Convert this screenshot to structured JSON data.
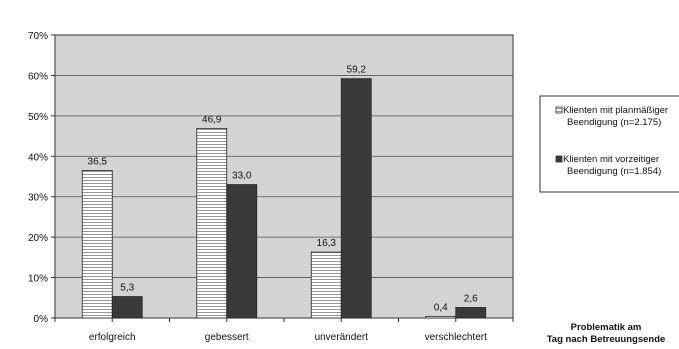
{
  "chart_data": {
    "type": "bar",
    "categories": [
      "erfolgreich",
      "gebessert",
      "unverändert",
      "verschlechtert"
    ],
    "series": [
      {
        "name_lines": [
          "Klienten mit planmäßiger",
          "Beendigung (n=2.175)"
        ],
        "values": [
          36.5,
          46.9,
          16.3,
          0.4
        ],
        "labels": [
          "36,5",
          "46,9",
          "16,3",
          "0,4"
        ],
        "pattern": "horizontal-stripes",
        "color": "#ffffff"
      },
      {
        "name_lines": [
          "Klienten mit vorzeitiger",
          "Beendigung (n=1.854)"
        ],
        "values": [
          5.3,
          33.0,
          59.2,
          2.6
        ],
        "labels": [
          "5,3",
          "33,0",
          "59,2",
          "2,6"
        ],
        "pattern": "solid",
        "color": "#3a3a3a"
      }
    ],
    "ylim": [
      0,
      70
    ],
    "yticks": [
      "0%",
      "10%",
      "20%",
      "30%",
      "40%",
      "50%",
      "60%",
      "70%"
    ],
    "xlabel_lines": [
      "Problematik am",
      "Tag nach Betreuungsende"
    ],
    "grid": true,
    "legend": "right",
    "plot_background": "#d4d4d4"
  }
}
